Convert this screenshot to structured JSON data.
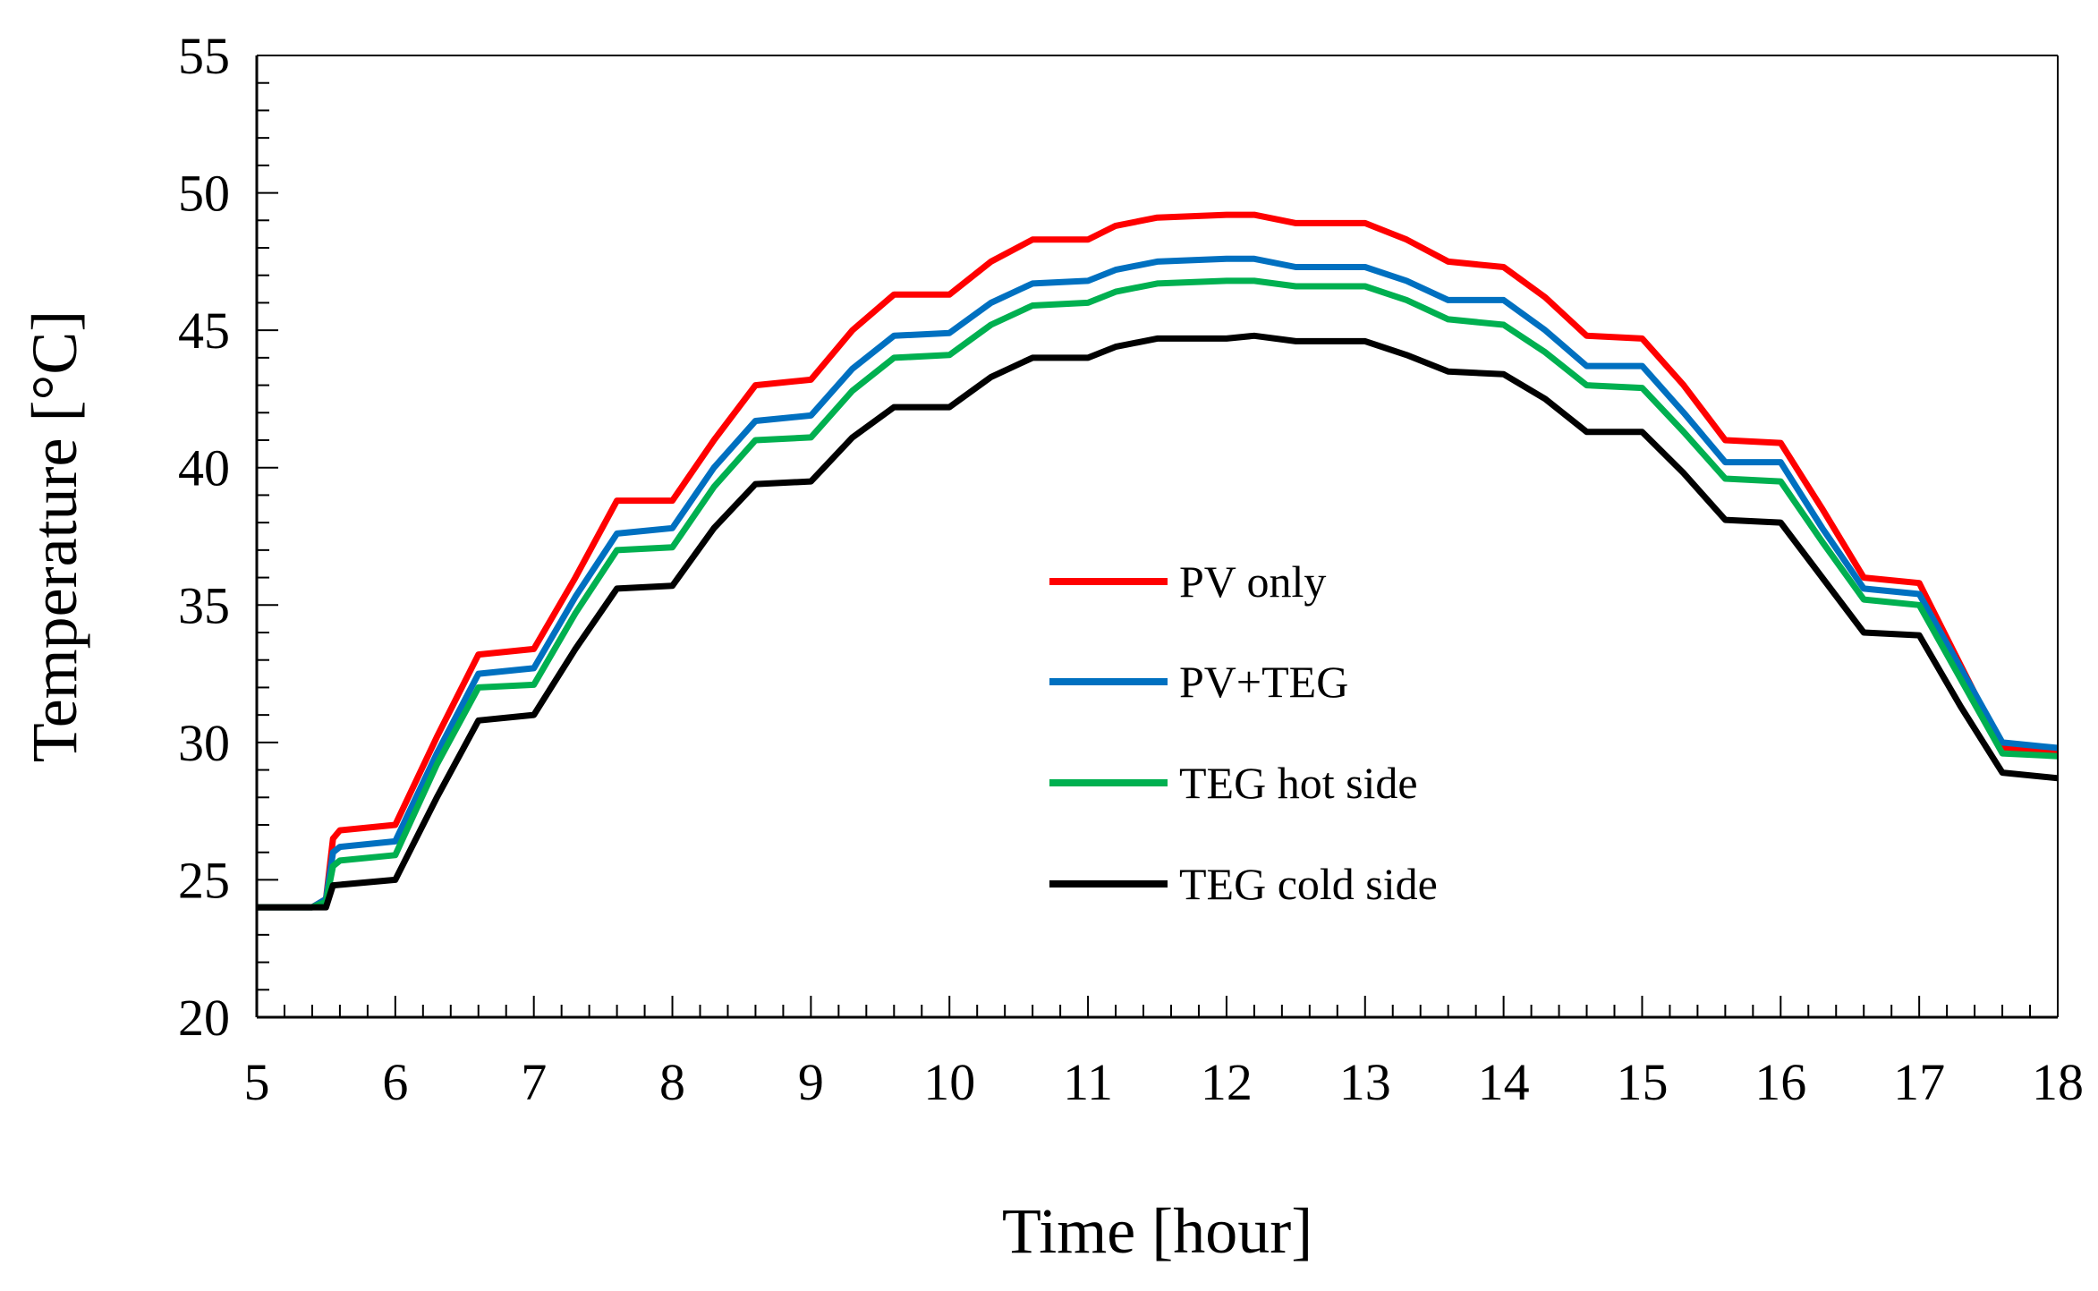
{
  "chart_data": {
    "type": "line",
    "title": "",
    "xlabel": "Time [hour]",
    "ylabel": "Temperature [°C]",
    "xlim": [
      5,
      18
    ],
    "ylim": [
      20,
      55
    ],
    "xticks": [
      "5",
      "6",
      "7",
      "8",
      "9",
      "10",
      "11",
      "12",
      "13",
      "14",
      "15",
      "16",
      "17",
      "18"
    ],
    "yticks": [
      "20",
      "25",
      "30",
      "35",
      "40",
      "45",
      "50",
      "55"
    ],
    "legend_position": "center",
    "series": [
      {
        "name": "PV only",
        "color": "#ff0000",
        "points": [
          [
            5,
            24
          ],
          [
            5.4,
            24
          ],
          [
            5.5,
            24.3
          ],
          [
            5.55,
            26.5
          ],
          [
            5.6,
            26.8
          ],
          [
            6,
            27
          ],
          [
            6.3,
            30.2
          ],
          [
            6.6,
            33.2
          ],
          [
            7,
            33.4
          ],
          [
            7.3,
            36
          ],
          [
            7.6,
            38.8
          ],
          [
            8,
            38.8
          ],
          [
            8.3,
            41
          ],
          [
            8.6,
            43
          ],
          [
            9,
            43.2
          ],
          [
            9.3,
            45
          ],
          [
            9.6,
            46.3
          ],
          [
            10,
            46.3
          ],
          [
            10.3,
            47.5
          ],
          [
            10.6,
            48.3
          ],
          [
            11,
            48.3
          ],
          [
            11.2,
            48.8
          ],
          [
            11.5,
            49.1
          ],
          [
            12,
            49.2
          ],
          [
            12.2,
            49.2
          ],
          [
            12.5,
            48.9
          ],
          [
            13,
            48.9
          ],
          [
            13.3,
            48.3
          ],
          [
            13.6,
            47.5
          ],
          [
            14,
            47.3
          ],
          [
            14.3,
            46.2
          ],
          [
            14.6,
            44.8
          ],
          [
            15,
            44.7
          ],
          [
            15.3,
            43
          ],
          [
            15.6,
            41
          ],
          [
            16,
            40.9
          ],
          [
            16.3,
            38.5
          ],
          [
            16.6,
            36
          ],
          [
            17,
            35.8
          ],
          [
            17.3,
            32.8
          ],
          [
            17.6,
            29.8
          ],
          [
            18,
            29.6
          ]
        ]
      },
      {
        "name": "PV+TEG",
        "color": "#0070c0",
        "points": [
          [
            5,
            24
          ],
          [
            5.4,
            24
          ],
          [
            5.5,
            24.3
          ],
          [
            5.55,
            26
          ],
          [
            5.6,
            26.2
          ],
          [
            6,
            26.4
          ],
          [
            6.3,
            29.6
          ],
          [
            6.6,
            32.5
          ],
          [
            7,
            32.7
          ],
          [
            7.3,
            35.3
          ],
          [
            7.6,
            37.6
          ],
          [
            8,
            37.8
          ],
          [
            8.3,
            40
          ],
          [
            8.6,
            41.7
          ],
          [
            9,
            41.9
          ],
          [
            9.3,
            43.6
          ],
          [
            9.6,
            44.8
          ],
          [
            10,
            44.9
          ],
          [
            10.3,
            46
          ],
          [
            10.6,
            46.7
          ],
          [
            11,
            46.8
          ],
          [
            11.2,
            47.2
          ],
          [
            11.5,
            47.5
          ],
          [
            12,
            47.6
          ],
          [
            12.2,
            47.6
          ],
          [
            12.5,
            47.3
          ],
          [
            13,
            47.3
          ],
          [
            13.3,
            46.8
          ],
          [
            13.6,
            46.1
          ],
          [
            14,
            46.1
          ],
          [
            14.3,
            45
          ],
          [
            14.6,
            43.7
          ],
          [
            15,
            43.7
          ],
          [
            15.3,
            42
          ],
          [
            15.6,
            40.2
          ],
          [
            16,
            40.2
          ],
          [
            16.3,
            37.8
          ],
          [
            16.6,
            35.6
          ],
          [
            17,
            35.4
          ],
          [
            17.3,
            32.7
          ],
          [
            17.6,
            30
          ],
          [
            18,
            29.8
          ]
        ]
      },
      {
        "name": "TEG hot side",
        "color": "#00b050",
        "points": [
          [
            5,
            24
          ],
          [
            5.4,
            24
          ],
          [
            5.5,
            24.2
          ],
          [
            5.55,
            25.5
          ],
          [
            5.6,
            25.7
          ],
          [
            6,
            25.9
          ],
          [
            6.3,
            29.2
          ],
          [
            6.6,
            32
          ],
          [
            7,
            32.1
          ],
          [
            7.3,
            34.7
          ],
          [
            7.6,
            37
          ],
          [
            8,
            37.1
          ],
          [
            8.3,
            39.3
          ],
          [
            8.6,
            41
          ],
          [
            9,
            41.1
          ],
          [
            9.3,
            42.8
          ],
          [
            9.6,
            44
          ],
          [
            10,
            44.1
          ],
          [
            10.3,
            45.2
          ],
          [
            10.6,
            45.9
          ],
          [
            11,
            46
          ],
          [
            11.2,
            46.4
          ],
          [
            11.5,
            46.7
          ],
          [
            12,
            46.8
          ],
          [
            12.2,
            46.8
          ],
          [
            12.5,
            46.6
          ],
          [
            13,
            46.6
          ],
          [
            13.3,
            46.1
          ],
          [
            13.6,
            45.4
          ],
          [
            14,
            45.2
          ],
          [
            14.3,
            44.2
          ],
          [
            14.6,
            43
          ],
          [
            15,
            42.9
          ],
          [
            15.3,
            41.3
          ],
          [
            15.6,
            39.6
          ],
          [
            16,
            39.5
          ],
          [
            16.3,
            37.3
          ],
          [
            16.6,
            35.2
          ],
          [
            17,
            35
          ],
          [
            17.3,
            32.3
          ],
          [
            17.6,
            29.6
          ],
          [
            18,
            29.5
          ]
        ]
      },
      {
        "name": "TEG cold side",
        "color": "#000000",
        "points": [
          [
            5,
            24
          ],
          [
            5.5,
            24
          ],
          [
            5.55,
            24.8
          ],
          [
            6,
            25
          ],
          [
            6.3,
            28
          ],
          [
            6.6,
            30.8
          ],
          [
            7,
            31
          ],
          [
            7.3,
            33.4
          ],
          [
            7.6,
            35.6
          ],
          [
            8,
            35.7
          ],
          [
            8.3,
            37.8
          ],
          [
            8.6,
            39.4
          ],
          [
            9,
            39.5
          ],
          [
            9.3,
            41.1
          ],
          [
            9.6,
            42.2
          ],
          [
            10,
            42.2
          ],
          [
            10.3,
            43.3
          ],
          [
            10.6,
            44
          ],
          [
            11,
            44
          ],
          [
            11.2,
            44.4
          ],
          [
            11.5,
            44.7
          ],
          [
            12,
            44.7
          ],
          [
            12.2,
            44.8
          ],
          [
            12.5,
            44.6
          ],
          [
            13,
            44.6
          ],
          [
            13.3,
            44.1
          ],
          [
            13.6,
            43.5
          ],
          [
            14,
            43.4
          ],
          [
            14.3,
            42.5
          ],
          [
            14.6,
            41.3
          ],
          [
            15,
            41.3
          ],
          [
            15.3,
            39.8
          ],
          [
            15.6,
            38.1
          ],
          [
            16,
            38
          ],
          [
            16.3,
            36
          ],
          [
            16.6,
            34
          ],
          [
            17,
            33.9
          ],
          [
            17.3,
            31.3
          ],
          [
            17.6,
            28.9
          ],
          [
            18,
            28.7
          ]
        ]
      }
    ]
  }
}
